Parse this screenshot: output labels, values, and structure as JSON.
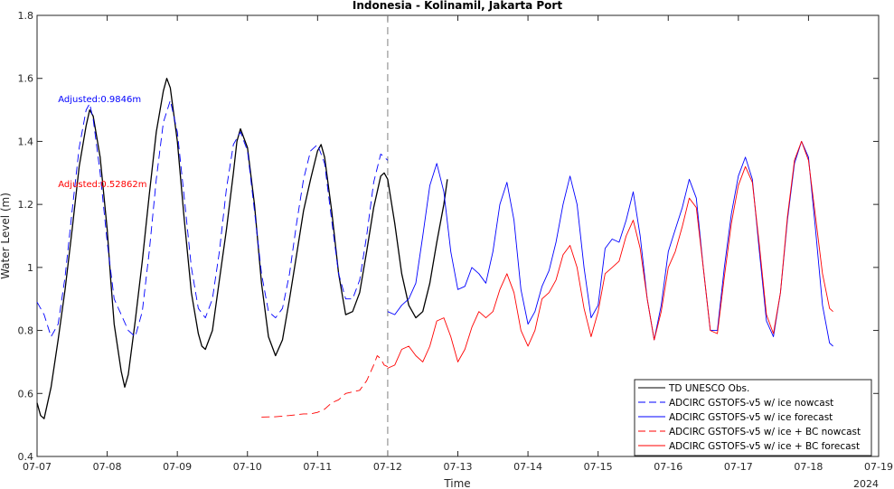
{
  "chart_data": {
    "type": "line",
    "title": "Indonesia - Kolinamil, Jakarta Port",
    "xlabel": "Time",
    "ylabel": "Water Level (m)",
    "year_label": "2024",
    "xlim": [
      "07-07",
      "07-19"
    ],
    "ylim": [
      0.4,
      1.8
    ],
    "x_ticks": [
      "07-07",
      "07-08",
      "07-09",
      "07-10",
      "07-11",
      "07-12",
      "07-13",
      "07-14",
      "07-15",
      "07-16",
      "07-17",
      "07-18",
      "07-19"
    ],
    "y_ticks": [
      "0.4",
      "0.6",
      "0.8",
      "1",
      "1.2",
      "1.4",
      "1.6",
      "1.8"
    ],
    "vertical_marker_day": 5.0,
    "grid": false,
    "legend_position": "bottom-right",
    "annotations": [
      {
        "text": "Adjusted:0.9846m",
        "color": "#0000ff",
        "x_day": 0.3,
        "y": 1.525
      },
      {
        "text": "Adjusted:0.52862m",
        "color": "#ff0000",
        "x_day": 0.3,
        "y": 1.255
      }
    ],
    "series": [
      {
        "name": "TD UNESCO Obs.",
        "color": "#000000",
        "dash": "solid",
        "points": [
          [
            0.0,
            0.57
          ],
          [
            0.05,
            0.53
          ],
          [
            0.1,
            0.52
          ],
          [
            0.2,
            0.62
          ],
          [
            0.3,
            0.77
          ],
          [
            0.4,
            0.93
          ],
          [
            0.5,
            1.12
          ],
          [
            0.6,
            1.32
          ],
          [
            0.7,
            1.45
          ],
          [
            0.75,
            1.5
          ],
          [
            0.8,
            1.48
          ],
          [
            0.9,
            1.35
          ],
          [
            1.0,
            1.12
          ],
          [
            1.05,
            0.96
          ],
          [
            1.1,
            0.82
          ],
          [
            1.2,
            0.67
          ],
          [
            1.25,
            0.62
          ],
          [
            1.3,
            0.66
          ],
          [
            1.4,
            0.83
          ],
          [
            1.5,
            1.02
          ],
          [
            1.6,
            1.23
          ],
          [
            1.7,
            1.43
          ],
          [
            1.8,
            1.56
          ],
          [
            1.85,
            1.6
          ],
          [
            1.9,
            1.57
          ],
          [
            2.0,
            1.4
          ],
          [
            2.1,
            1.15
          ],
          [
            2.2,
            0.92
          ],
          [
            2.3,
            0.79
          ],
          [
            2.35,
            0.75
          ],
          [
            2.4,
            0.74
          ],
          [
            2.5,
            0.8
          ],
          [
            2.6,
            0.96
          ],
          [
            2.7,
            1.12
          ],
          [
            2.8,
            1.3
          ],
          [
            2.85,
            1.4
          ],
          [
            2.9,
            1.44
          ],
          [
            3.0,
            1.38
          ],
          [
            3.1,
            1.2
          ],
          [
            3.2,
            0.95
          ],
          [
            3.3,
            0.78
          ],
          [
            3.4,
            0.72
          ],
          [
            3.5,
            0.77
          ],
          [
            3.6,
            0.9
          ],
          [
            3.7,
            1.04
          ],
          [
            3.8,
            1.18
          ],
          [
            3.9,
            1.28
          ],
          [
            4.0,
            1.37
          ],
          [
            4.05,
            1.39
          ],
          [
            4.1,
            1.35
          ],
          [
            4.2,
            1.18
          ],
          [
            4.3,
            0.98
          ],
          [
            4.4,
            0.85
          ],
          [
            4.5,
            0.86
          ],
          [
            4.6,
            0.92
          ],
          [
            4.7,
            1.05
          ],
          [
            4.8,
            1.19
          ],
          [
            4.9,
            1.29
          ],
          [
            4.95,
            1.3
          ],
          [
            5.0,
            1.28
          ],
          [
            5.1,
            1.14
          ],
          [
            5.2,
            0.98
          ],
          [
            5.3,
            0.88
          ],
          [
            5.4,
            0.84
          ],
          [
            5.5,
            0.86
          ],
          [
            5.6,
            0.95
          ],
          [
            5.7,
            1.08
          ],
          [
            5.8,
            1.2
          ],
          [
            5.85,
            1.28
          ]
        ]
      },
      {
        "name": "ADCIRC GSTOFS-v5 w/ ice nowcast",
        "color": "#0000ff",
        "dash": "dashed",
        "points": [
          [
            0.0,
            0.89
          ],
          [
            0.1,
            0.85
          ],
          [
            0.2,
            0.78
          ],
          [
            0.3,
            0.82
          ],
          [
            0.4,
            0.97
          ],
          [
            0.5,
            1.18
          ],
          [
            0.6,
            1.38
          ],
          [
            0.7,
            1.5
          ],
          [
            0.75,
            1.52
          ],
          [
            0.8,
            1.47
          ],
          [
            0.9,
            1.3
          ],
          [
            1.0,
            1.08
          ],
          [
            1.1,
            0.9
          ],
          [
            1.2,
            0.85
          ],
          [
            1.3,
            0.8
          ],
          [
            1.4,
            0.78
          ],
          [
            1.5,
            0.86
          ],
          [
            1.6,
            1.05
          ],
          [
            1.7,
            1.28
          ],
          [
            1.8,
            1.46
          ],
          [
            1.9,
            1.53
          ],
          [
            2.0,
            1.43
          ],
          [
            2.1,
            1.22
          ],
          [
            2.2,
            1.0
          ],
          [
            2.3,
            0.87
          ],
          [
            2.4,
            0.84
          ],
          [
            2.5,
            0.9
          ],
          [
            2.6,
            1.05
          ],
          [
            2.7,
            1.25
          ],
          [
            2.8,
            1.39
          ],
          [
            2.9,
            1.43
          ],
          [
            3.0,
            1.37
          ],
          [
            3.1,
            1.18
          ],
          [
            3.2,
            0.98
          ],
          [
            3.3,
            0.86
          ],
          [
            3.4,
            0.84
          ],
          [
            3.5,
            0.87
          ],
          [
            3.6,
            0.98
          ],
          [
            3.7,
            1.14
          ],
          [
            3.8,
            1.28
          ],
          [
            3.9,
            1.37
          ],
          [
            4.0,
            1.39
          ],
          [
            4.1,
            1.33
          ],
          [
            4.2,
            1.15
          ],
          [
            4.3,
            0.98
          ],
          [
            4.4,
            0.9
          ],
          [
            4.5,
            0.9
          ],
          [
            4.6,
            0.96
          ],
          [
            4.7,
            1.1
          ],
          [
            4.8,
            1.27
          ],
          [
            4.9,
            1.36
          ],
          [
            5.0,
            1.34
          ]
        ]
      },
      {
        "name": "ADCIRC GSTOFS-v5 w/ ice forecast",
        "color": "#0000ff",
        "dash": "solid",
        "points": [
          [
            5.0,
            0.86
          ],
          [
            5.1,
            0.85
          ],
          [
            5.2,
            0.88
          ],
          [
            5.3,
            0.9
          ],
          [
            5.4,
            0.95
          ],
          [
            5.5,
            1.1
          ],
          [
            5.6,
            1.26
          ],
          [
            5.7,
            1.33
          ],
          [
            5.8,
            1.24
          ],
          [
            5.9,
            1.05
          ],
          [
            6.0,
            0.93
          ],
          [
            6.1,
            0.94
          ],
          [
            6.2,
            1.0
          ],
          [
            6.3,
            0.98
          ],
          [
            6.4,
            0.95
          ],
          [
            6.5,
            1.05
          ],
          [
            6.6,
            1.2
          ],
          [
            6.7,
            1.27
          ],
          [
            6.8,
            1.15
          ],
          [
            6.9,
            0.93
          ],
          [
            7.0,
            0.82
          ],
          [
            7.1,
            0.86
          ],
          [
            7.2,
            0.94
          ],
          [
            7.3,
            0.99
          ],
          [
            7.4,
            1.08
          ],
          [
            7.5,
            1.2
          ],
          [
            7.6,
            1.29
          ],
          [
            7.7,
            1.2
          ],
          [
            7.8,
            1.0
          ],
          [
            7.9,
            0.84
          ],
          [
            8.0,
            0.88
          ],
          [
            8.1,
            1.06
          ],
          [
            8.2,
            1.09
          ],
          [
            8.3,
            1.08
          ],
          [
            8.4,
            1.15
          ],
          [
            8.5,
            1.24
          ],
          [
            8.6,
            1.1
          ],
          [
            8.7,
            0.9
          ],
          [
            8.8,
            0.77
          ],
          [
            8.9,
            0.88
          ],
          [
            9.0,
            1.05
          ],
          [
            9.1,
            1.12
          ],
          [
            9.2,
            1.19
          ],
          [
            9.3,
            1.28
          ],
          [
            9.4,
            1.22
          ],
          [
            9.5,
            1.0
          ],
          [
            9.6,
            0.8
          ],
          [
            9.7,
            0.8
          ],
          [
            9.8,
            1.0
          ],
          [
            9.9,
            1.17
          ],
          [
            10.0,
            1.29
          ],
          [
            10.1,
            1.35
          ],
          [
            10.2,
            1.28
          ],
          [
            10.3,
            1.05
          ],
          [
            10.4,
            0.83
          ],
          [
            10.5,
            0.78
          ],
          [
            10.6,
            0.92
          ],
          [
            10.7,
            1.15
          ],
          [
            10.8,
            1.33
          ],
          [
            10.9,
            1.4
          ],
          [
            11.0,
            1.35
          ],
          [
            11.1,
            1.12
          ],
          [
            11.2,
            0.88
          ],
          [
            11.3,
            0.76
          ],
          [
            11.35,
            0.75
          ]
        ]
      },
      {
        "name": "ADCIRC GSTOFS-v5 w/ ice + BC nowcast",
        "color": "#ff0000",
        "dash": "dashed",
        "points": [
          [
            3.2,
            0.525
          ],
          [
            3.4,
            0.526
          ],
          [
            3.6,
            0.53
          ],
          [
            3.8,
            0.535
          ],
          [
            3.9,
            0.535
          ],
          [
            4.0,
            0.54
          ],
          [
            4.1,
            0.55
          ],
          [
            4.2,
            0.57
          ],
          [
            4.3,
            0.58
          ],
          [
            4.4,
            0.6
          ],
          [
            4.5,
            0.605
          ],
          [
            4.6,
            0.61
          ],
          [
            4.7,
            0.64
          ],
          [
            4.8,
            0.69
          ],
          [
            4.85,
            0.72
          ],
          [
            4.9,
            0.71
          ],
          [
            4.95,
            0.69
          ],
          [
            5.0,
            0.685
          ]
        ]
      },
      {
        "name": "ADCIRC GSTOFS-v5 w/ ice + BC forecast",
        "color": "#ff0000",
        "dash": "solid",
        "points": [
          [
            5.0,
            0.68
          ],
          [
            5.1,
            0.69
          ],
          [
            5.2,
            0.74
          ],
          [
            5.3,
            0.75
          ],
          [
            5.4,
            0.72
          ],
          [
            5.5,
            0.7
          ],
          [
            5.6,
            0.75
          ],
          [
            5.7,
            0.83
          ],
          [
            5.8,
            0.84
          ],
          [
            5.9,
            0.78
          ],
          [
            6.0,
            0.7
          ],
          [
            6.1,
            0.74
          ],
          [
            6.2,
            0.81
          ],
          [
            6.3,
            0.86
          ],
          [
            6.4,
            0.84
          ],
          [
            6.5,
            0.86
          ],
          [
            6.6,
            0.93
          ],
          [
            6.7,
            0.98
          ],
          [
            6.8,
            0.92
          ],
          [
            6.9,
            0.8
          ],
          [
            7.0,
            0.75
          ],
          [
            7.1,
            0.8
          ],
          [
            7.2,
            0.9
          ],
          [
            7.3,
            0.92
          ],
          [
            7.4,
            0.96
          ],
          [
            7.5,
            1.04
          ],
          [
            7.6,
            1.07
          ],
          [
            7.7,
            1.0
          ],
          [
            7.8,
            0.87
          ],
          [
            7.9,
            0.78
          ],
          [
            8.0,
            0.86
          ],
          [
            8.1,
            0.98
          ],
          [
            8.2,
            1.0
          ],
          [
            8.3,
            1.02
          ],
          [
            8.4,
            1.1
          ],
          [
            8.5,
            1.15
          ],
          [
            8.6,
            1.06
          ],
          [
            8.7,
            0.9
          ],
          [
            8.8,
            0.77
          ],
          [
            8.9,
            0.86
          ],
          [
            9.0,
            1.0
          ],
          [
            9.1,
            1.05
          ],
          [
            9.2,
            1.13
          ],
          [
            9.3,
            1.22
          ],
          [
            9.4,
            1.19
          ],
          [
            9.5,
            1.0
          ],
          [
            9.6,
            0.8
          ],
          [
            9.7,
            0.79
          ],
          [
            9.8,
            0.97
          ],
          [
            9.9,
            1.14
          ],
          [
            10.0,
            1.26
          ],
          [
            10.1,
            1.32
          ],
          [
            10.2,
            1.27
          ],
          [
            10.3,
            1.07
          ],
          [
            10.4,
            0.85
          ],
          [
            10.5,
            0.79
          ],
          [
            10.6,
            0.92
          ],
          [
            10.7,
            1.16
          ],
          [
            10.8,
            1.34
          ],
          [
            10.9,
            1.4
          ],
          [
            11.0,
            1.34
          ],
          [
            11.1,
            1.16
          ],
          [
            11.2,
            0.98
          ],
          [
            11.3,
            0.87
          ],
          [
            11.35,
            0.86
          ]
        ]
      }
    ]
  }
}
